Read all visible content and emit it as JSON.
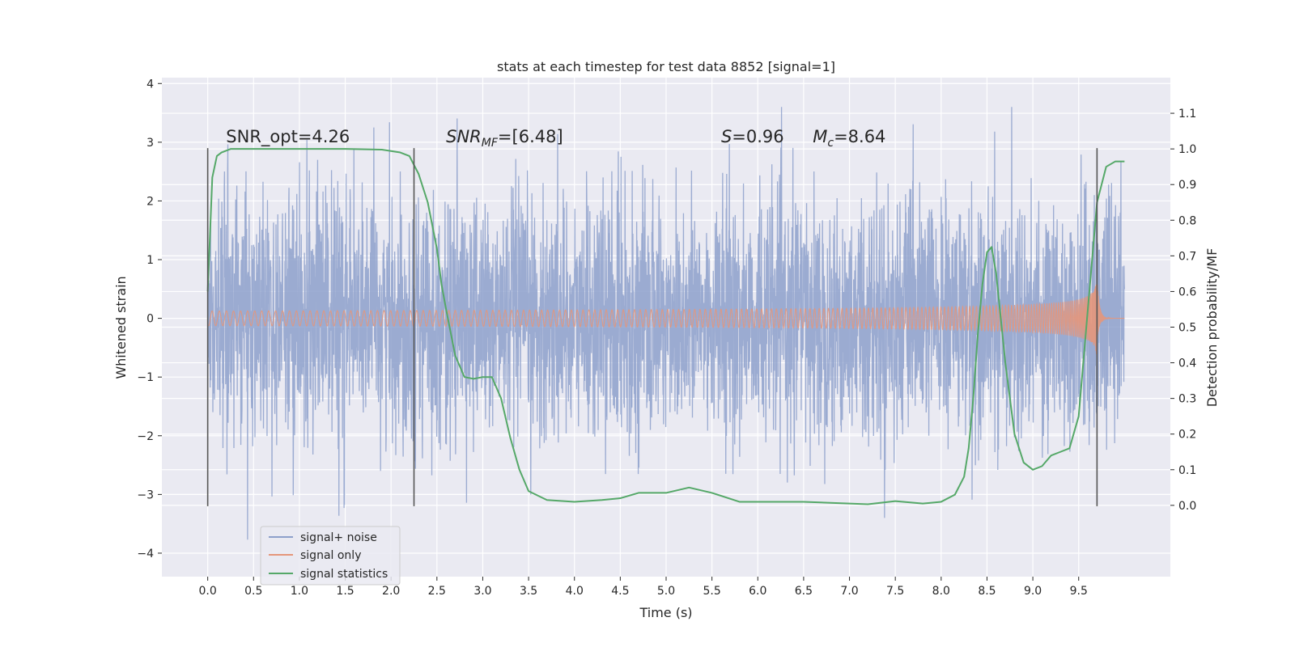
{
  "chart_data": {
    "type": "line",
    "title": "stats at each timestep for test data 8852 [signal=1]",
    "xlabel": "Time (s)",
    "ylabel": "Whitened strain",
    "y2label": "Detection probability/MF",
    "xlim": [
      -0.5,
      10.5
    ],
    "ylim": [
      -4.4,
      4.1
    ],
    "y2lim": [
      -0.2,
      1.2
    ],
    "x_ticks": [
      "0.0",
      "0.5",
      "1.0",
      "1.5",
      "2.0",
      "2.5",
      "3.0",
      "3.5",
      "4.0",
      "4.5",
      "5.0",
      "5.5",
      "6.0",
      "6.5",
      "7.0",
      "7.5",
      "8.0",
      "8.5",
      "9.0",
      "9.5"
    ],
    "y_ticks": [
      "−4",
      "−3",
      "−2",
      "−1",
      "0",
      "1",
      "2",
      "3",
      "4"
    ],
    "y2_ticks": [
      "0.0",
      "0.1",
      "0.2",
      "0.3",
      "0.4",
      "0.5",
      "0.6",
      "0.7",
      "0.8",
      "0.9",
      "1.0",
      "1.1"
    ],
    "grid": true,
    "legend_position": "lower-left",
    "annotations": [
      {
        "text": "SNR_opt=4.26",
        "x": 0.2,
        "y": 3.0
      },
      {
        "text_main": "SNR",
        "text_sub": "MF",
        "text_rest": "=[6.48]",
        "x": 2.6,
        "y": 3.0
      },
      {
        "text_main": "S",
        "text_rest": "=0.96",
        "x": 5.6,
        "y": 3.0
      },
      {
        "text_main": "M",
        "text_sub": "c",
        "text_rest": "=8.64",
        "x": 6.6,
        "y": 3.0
      }
    ],
    "vlines": [
      0.0,
      2.25,
      9.7
    ],
    "vline_range": [
      -3.2,
      2.9
    ],
    "series": [
      {
        "name": "signal+ noise",
        "color": "#8da0cb",
        "kind": "noise",
        "x_range": [
          0.0,
          10.0
        ],
        "amplitude_sigma": 1.0,
        "approx_range": [
          -4.0,
          3.6
        ]
      },
      {
        "name": "signal only",
        "color": "#e5967a",
        "kind": "chirp",
        "x_range": [
          0.0,
          10.0
        ],
        "merger_time": 9.7,
        "peak_amplitude": 0.7
      },
      {
        "name": "signal statistics",
        "color": "#55a868",
        "axis": "y2",
        "x": [
          0.0,
          0.05,
          0.1,
          0.15,
          0.25,
          0.5,
          1.0,
          1.5,
          1.9,
          2.1,
          2.2,
          2.3,
          2.4,
          2.5,
          2.55,
          2.6,
          2.7,
          2.8,
          2.9,
          3.0,
          3.1,
          3.2,
          3.3,
          3.4,
          3.5,
          3.7,
          4.0,
          4.3,
          4.5,
          4.7,
          5.0,
          5.25,
          5.5,
          5.8,
          6.0,
          6.5,
          7.0,
          7.2,
          7.5,
          7.8,
          8.0,
          8.15,
          8.25,
          8.3,
          8.35,
          8.4,
          8.45,
          8.5,
          8.55,
          8.6,
          8.7,
          8.8,
          8.9,
          9.0,
          9.1,
          9.2,
          9.3,
          9.4,
          9.5,
          9.6,
          9.7,
          9.8,
          9.9,
          10.0
        ],
        "values": [
          0.6,
          0.92,
          0.98,
          0.99,
          1.0,
          1.0,
          1.0,
          1.0,
          0.998,
          0.99,
          0.98,
          0.93,
          0.85,
          0.72,
          0.62,
          0.55,
          0.42,
          0.36,
          0.355,
          0.36,
          0.36,
          0.3,
          0.19,
          0.1,
          0.04,
          0.015,
          0.01,
          0.015,
          0.02,
          0.035,
          0.035,
          0.05,
          0.035,
          0.01,
          0.01,
          0.01,
          0.005,
          0.003,
          0.012,
          0.005,
          0.01,
          0.03,
          0.08,
          0.16,
          0.3,
          0.48,
          0.62,
          0.71,
          0.725,
          0.65,
          0.4,
          0.2,
          0.12,
          0.1,
          0.11,
          0.14,
          0.15,
          0.16,
          0.25,
          0.55,
          0.85,
          0.95,
          0.965,
          0.965
        ]
      }
    ]
  }
}
